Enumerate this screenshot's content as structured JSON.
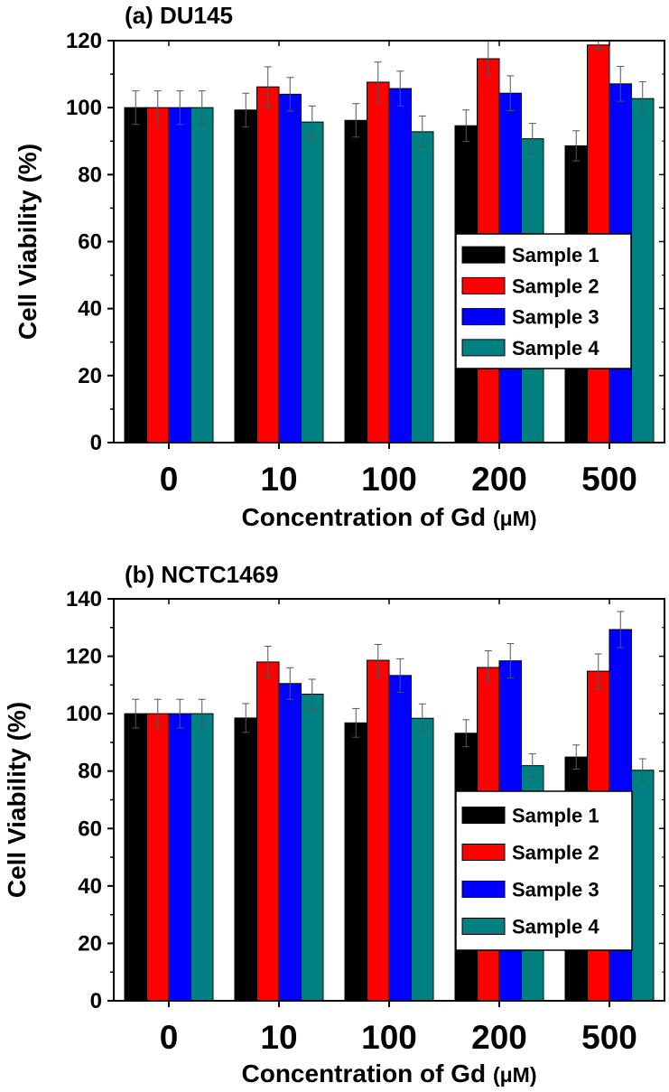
{
  "chart_data": [
    {
      "type": "bar",
      "title": "(a) DU145",
      "xlabel": "Concentration of Gd",
      "xunit": "(μM)",
      "ylabel": "Cell Viability (%)",
      "ylim": [
        0,
        120
      ],
      "yticks": [
        0,
        20,
        40,
        60,
        80,
        100,
        120
      ],
      "categories": [
        "0",
        "10",
        "100",
        "200",
        "500"
      ],
      "series": [
        {
          "name": "Sample 1",
          "color": "#000000",
          "values": [
            100,
            99.3,
            96.2,
            94.6,
            88.6
          ],
          "errors": [
            5,
            5,
            5,
            4.7,
            4.5
          ]
        },
        {
          "name": "Sample 2",
          "color": "#ff0000",
          "values": [
            100,
            106.2,
            107.6,
            114.6,
            118.7
          ],
          "errors": [
            5,
            6,
            6,
            5.5,
            1.3
          ]
        },
        {
          "name": "Sample 3",
          "color": "#0000ff",
          "values": [
            100,
            104,
            105.7,
            104.3,
            107.1
          ],
          "errors": [
            5,
            5,
            5.2,
            5.2,
            5.2
          ]
        },
        {
          "name": "Sample 4",
          "color": "#008080",
          "values": [
            100,
            95.7,
            92.8,
            90.7,
            102.7
          ],
          "errors": [
            5,
            4.8,
            4.7,
            4.6,
            5
          ]
        }
      ],
      "legend_position": "center-right"
    },
    {
      "type": "bar",
      "title": "(b) NCTC1469",
      "xlabel": "Concentration of Gd",
      "xunit": "(μM)",
      "ylabel": "Cell Viability (%)",
      "ylim": [
        0,
        140
      ],
      "yticks": [
        0,
        20,
        40,
        60,
        80,
        100,
        120,
        140
      ],
      "categories": [
        "0",
        "10",
        "100",
        "200",
        "500"
      ],
      "series": [
        {
          "name": "Sample 1",
          "color": "#000000",
          "values": [
            100,
            98.5,
            96.8,
            93.2,
            84.9
          ],
          "errors": [
            5,
            5,
            5,
            4.7,
            4.2
          ]
        },
        {
          "name": "Sample 2",
          "color": "#ff0000",
          "values": [
            100,
            118,
            118.6,
            116.1,
            114.8
          ],
          "errors": [
            5,
            5.5,
            5.5,
            5.8,
            6
          ]
        },
        {
          "name": "Sample 3",
          "color": "#0000ff",
          "values": [
            100,
            110.5,
            113.3,
            118.4,
            129.3
          ],
          "errors": [
            5,
            5.5,
            5.8,
            6,
            6.3
          ]
        },
        {
          "name": "Sample 4",
          "color": "#008080",
          "values": [
            100,
            106.8,
            98.4,
            81.9,
            80.3
          ],
          "errors": [
            5,
            5.2,
            5,
            4.1,
            4
          ]
        }
      ],
      "legend_position": "lower-right"
    }
  ]
}
